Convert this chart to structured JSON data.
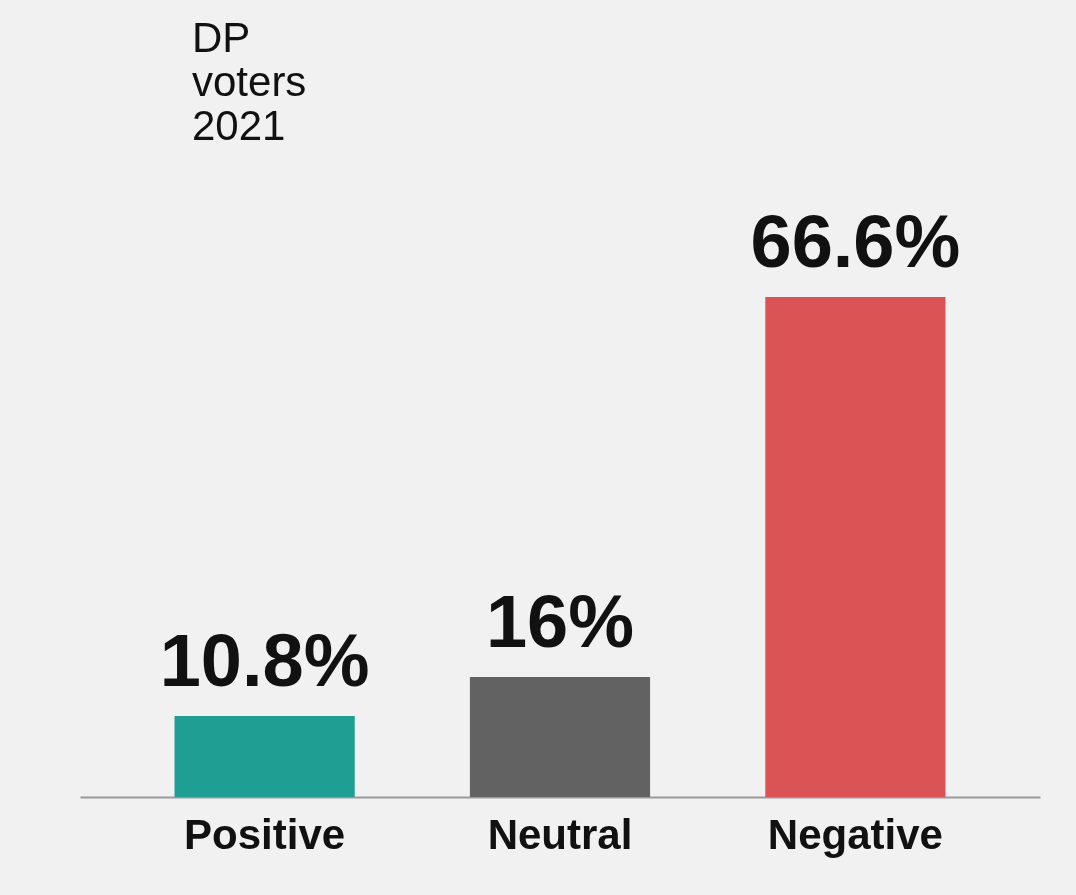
{
  "chart_data": {
    "type": "bar",
    "title": "DP voters 2021",
    "categories": [
      "Positive",
      "Neutral",
      "Negative"
    ],
    "values": [
      10.8,
      16,
      66.6
    ],
    "colors": [
      "#1f9e94",
      "#626262",
      "#da5456"
    ],
    "value_labels": [
      "10.8%",
      "16%",
      "66.6%"
    ],
    "grid": false
  }
}
